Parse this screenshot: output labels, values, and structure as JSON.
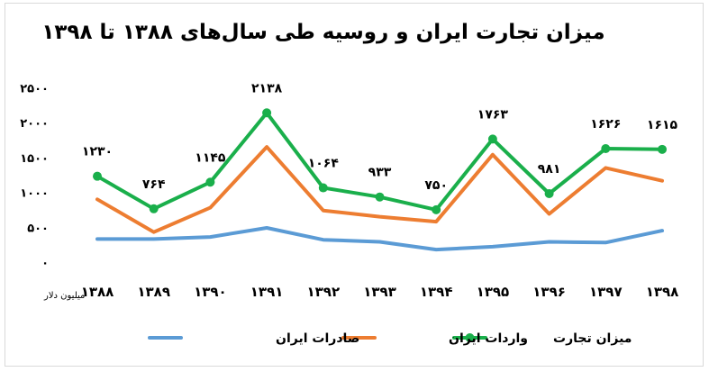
{
  "chart_data": {
    "type": "line",
    "title": "میزان تجارت ایران و روسیه طی سال‌های ۱۳۸۸ تا ۱۳۹۸",
    "ylabel": "میلیون دلار",
    "xlabel": "",
    "categories": [
      "۱۳۸۸",
      "۱۳۸۹",
      "۱۳۹۰",
      "۱۳۹۱",
      "۱۳۹۲",
      "۱۳۹۳",
      "۱۳۹۴",
      "۱۳۹۵",
      "۱۳۹۶",
      "۱۳۹۷",
      "۱۳۹۸"
    ],
    "yticks": [
      "۰",
      "۵۰۰",
      "۱۰۰۰",
      "۱۵۰۰",
      "۲۰۰۰",
      "۲۵۰۰"
    ],
    "ylim": [
      0,
      2500
    ],
    "grid": false,
    "legend_position": "bottom",
    "series": [
      {
        "name": "صادرات ایران",
        "color": "#5b9bd5",
        "markers": false,
        "values": [
          330,
          330,
          360,
          490,
          320,
          290,
          180,
          220,
          290,
          280,
          450
        ]
      },
      {
        "name": "واردات ایران",
        "color": "#ed7d31",
        "markers": false,
        "values": [
          900,
          430,
          780,
          1650,
          740,
          650,
          580,
          1540,
          690,
          1350,
          1165
        ]
      },
      {
        "name": "میزان تجارت",
        "color": "#1aaf4b",
        "markers": true,
        "values": [
          1230,
          764,
          1145,
          2138,
          1064,
          933,
          750,
          1763,
          981,
          1626,
          1615
        ],
        "data_labels": [
          "۱۲۳۰",
          "۷۶۴",
          "۱۱۴۵",
          "۲۱۳۸",
          "۱۰۶۴",
          "۹۳۳",
          "۷۵۰",
          "۱۷۶۳",
          "۹۸۱",
          "۱۶۲۶",
          "۱۶۱۵"
        ]
      }
    ]
  }
}
